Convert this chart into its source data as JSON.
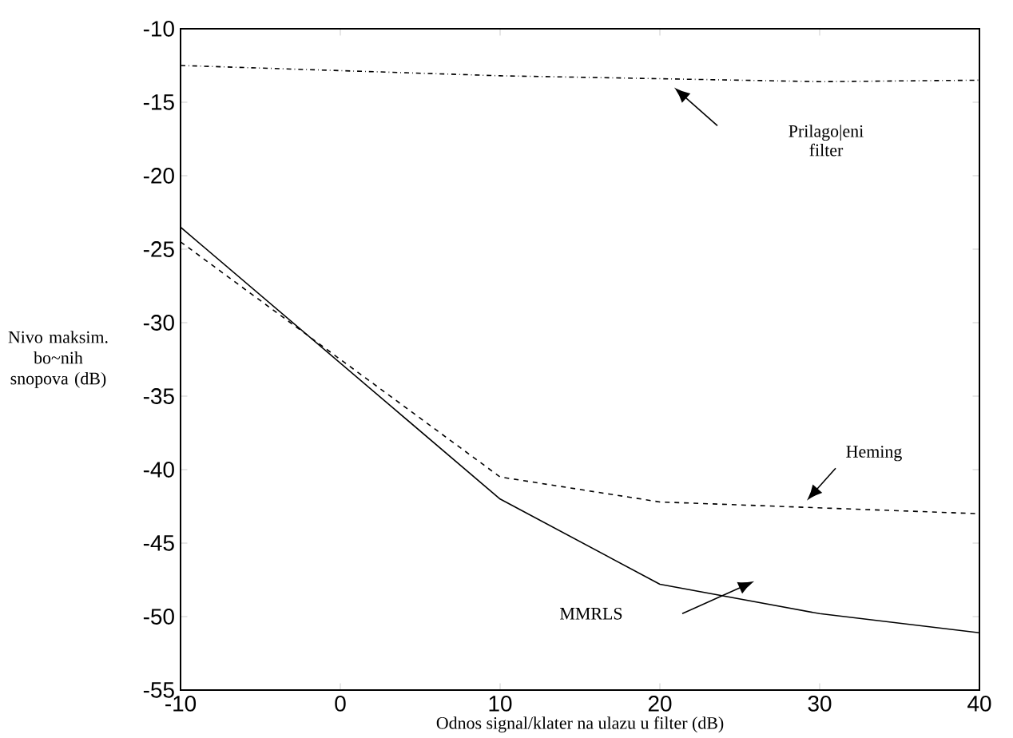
{
  "chart_data": {
    "type": "line",
    "xlabel": "Odnos signal/klater na ulazu u filter (dB)",
    "ylabel": "Nivo maksim. bo~nih snopova (dB)",
    "x": [
      -10,
      10,
      20,
      30,
      40
    ],
    "series": [
      {
        "name": "Prilago|eni filter",
        "color": "#000000",
        "line_style": "dashdot",
        "values": [
          -12.5,
          -13.2,
          -13.4,
          -13.6,
          -13.5
        ]
      },
      {
        "name": "Heming",
        "color": "#000000",
        "line_style": "dashed",
        "values": [
          -24.5,
          -40.5,
          -42.2,
          -42.6,
          -43.0
        ]
      },
      {
        "name": "MMRLS",
        "color": "#000000",
        "line_style": "solid",
        "values": [
          -23.5,
          -42.0,
          -47.8,
          -49.8,
          -51.1
        ]
      }
    ],
    "xlim": [
      -10,
      40
    ],
    "ylim": [
      -55,
      -10
    ],
    "xticks": [
      -10,
      0,
      10,
      20,
      30,
      40
    ],
    "yticks": [
      -55,
      -50,
      -45,
      -40,
      -35,
      -30,
      -25,
      -20,
      -15,
      -10
    ],
    "grid": false,
    "legend": false,
    "marker": "none"
  }
}
